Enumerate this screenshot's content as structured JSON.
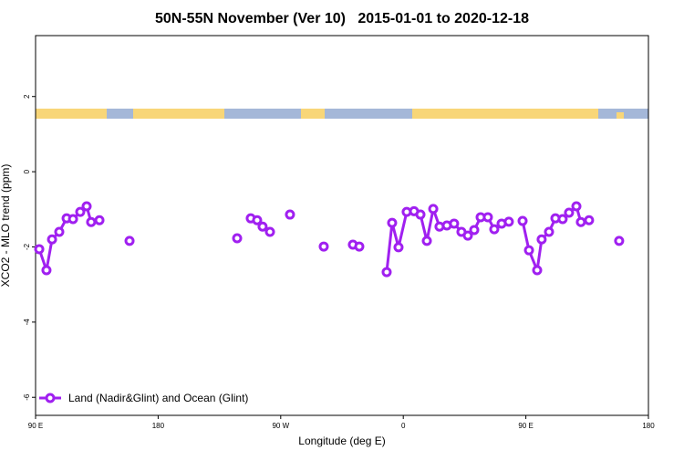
{
  "chart_data": {
    "type": "line",
    "title": "50N-55N November (Ver 10)   2015-01-01 to 2020-12-18",
    "x_label": "Longitude (deg E)",
    "y_label": "XCO2 - MLO trend (ppm)",
    "x": [
      92.7,
      98.0,
      102.1,
      107.4,
      112.8,
      117.5,
      122.8,
      127.5,
      130.8,
      136.9,
      null,
      159.0,
      null,
      238.0,
      null,
      248.0,
      252.7,
      256.7,
      262.1,
      null,
      276.8,
      null,
      301.6,
      null,
      323.0,
      327.7,
      null,
      347.8,
      351.8,
      356.5,
      362.5,
      367.9,
      372.6,
      377.3,
      382.0,
      386.6,
      392.0,
      397.3,
      402.7,
      407.4,
      412.1,
      416.8,
      422.1,
      426.8,
      432.2,
      437.5,
      null,
      447.6,
      452.3,
      458.3,
      461.6,
      467.0,
      471.7,
      477.0,
      481.7,
      487.1,
      490.4,
      496.4,
      null,
      518.5
    ],
    "series": [
      {
        "name": "Land (Nadir&Glint) and Ocean (Glint)",
        "color": "#a020f0",
        "values": [
          -2.06,
          -2.62,
          -1.8,
          -1.6,
          -1.24,
          -1.26,
          -1.07,
          -0.92,
          -1.34,
          -1.29,
          null,
          -1.84,
          null,
          -1.77,
          null,
          -1.24,
          -1.29,
          -1.46,
          -1.6,
          null,
          -1.14,
          null,
          -1.99,
          null,
          -1.94,
          -1.99,
          null,
          -2.67,
          -1.36,
          -2.01,
          -1.07,
          -1.05,
          -1.14,
          -1.84,
          -0.99,
          -1.46,
          -1.43,
          -1.38,
          -1.6,
          -1.7,
          -1.55,
          -1.21,
          -1.21,
          -1.53,
          -1.38,
          -1.33,
          null,
          -1.31,
          -2.09,
          -2.62,
          -1.8,
          -1.6,
          -1.24,
          -1.26,
          -1.09,
          -0.92,
          -1.34,
          -1.29,
          null,
          -1.84
        ]
      }
    ],
    "xlim": [
      90,
      540
    ],
    "xticks": [
      {
        "value": 90,
        "label": "90 E"
      },
      {
        "value": 180,
        "label": "180"
      },
      {
        "value": 270,
        "label": "90 W"
      },
      {
        "value": 360,
        "label": "0"
      },
      {
        "value": 450,
        "label": "90 E"
      },
      {
        "value": 540,
        "label": "180"
      }
    ],
    "ylim": [
      -6.48,
      3.62
    ],
    "yticks": [
      2,
      0,
      -2,
      -4,
      -6
    ],
    "legend": "bottom-left"
  }
}
